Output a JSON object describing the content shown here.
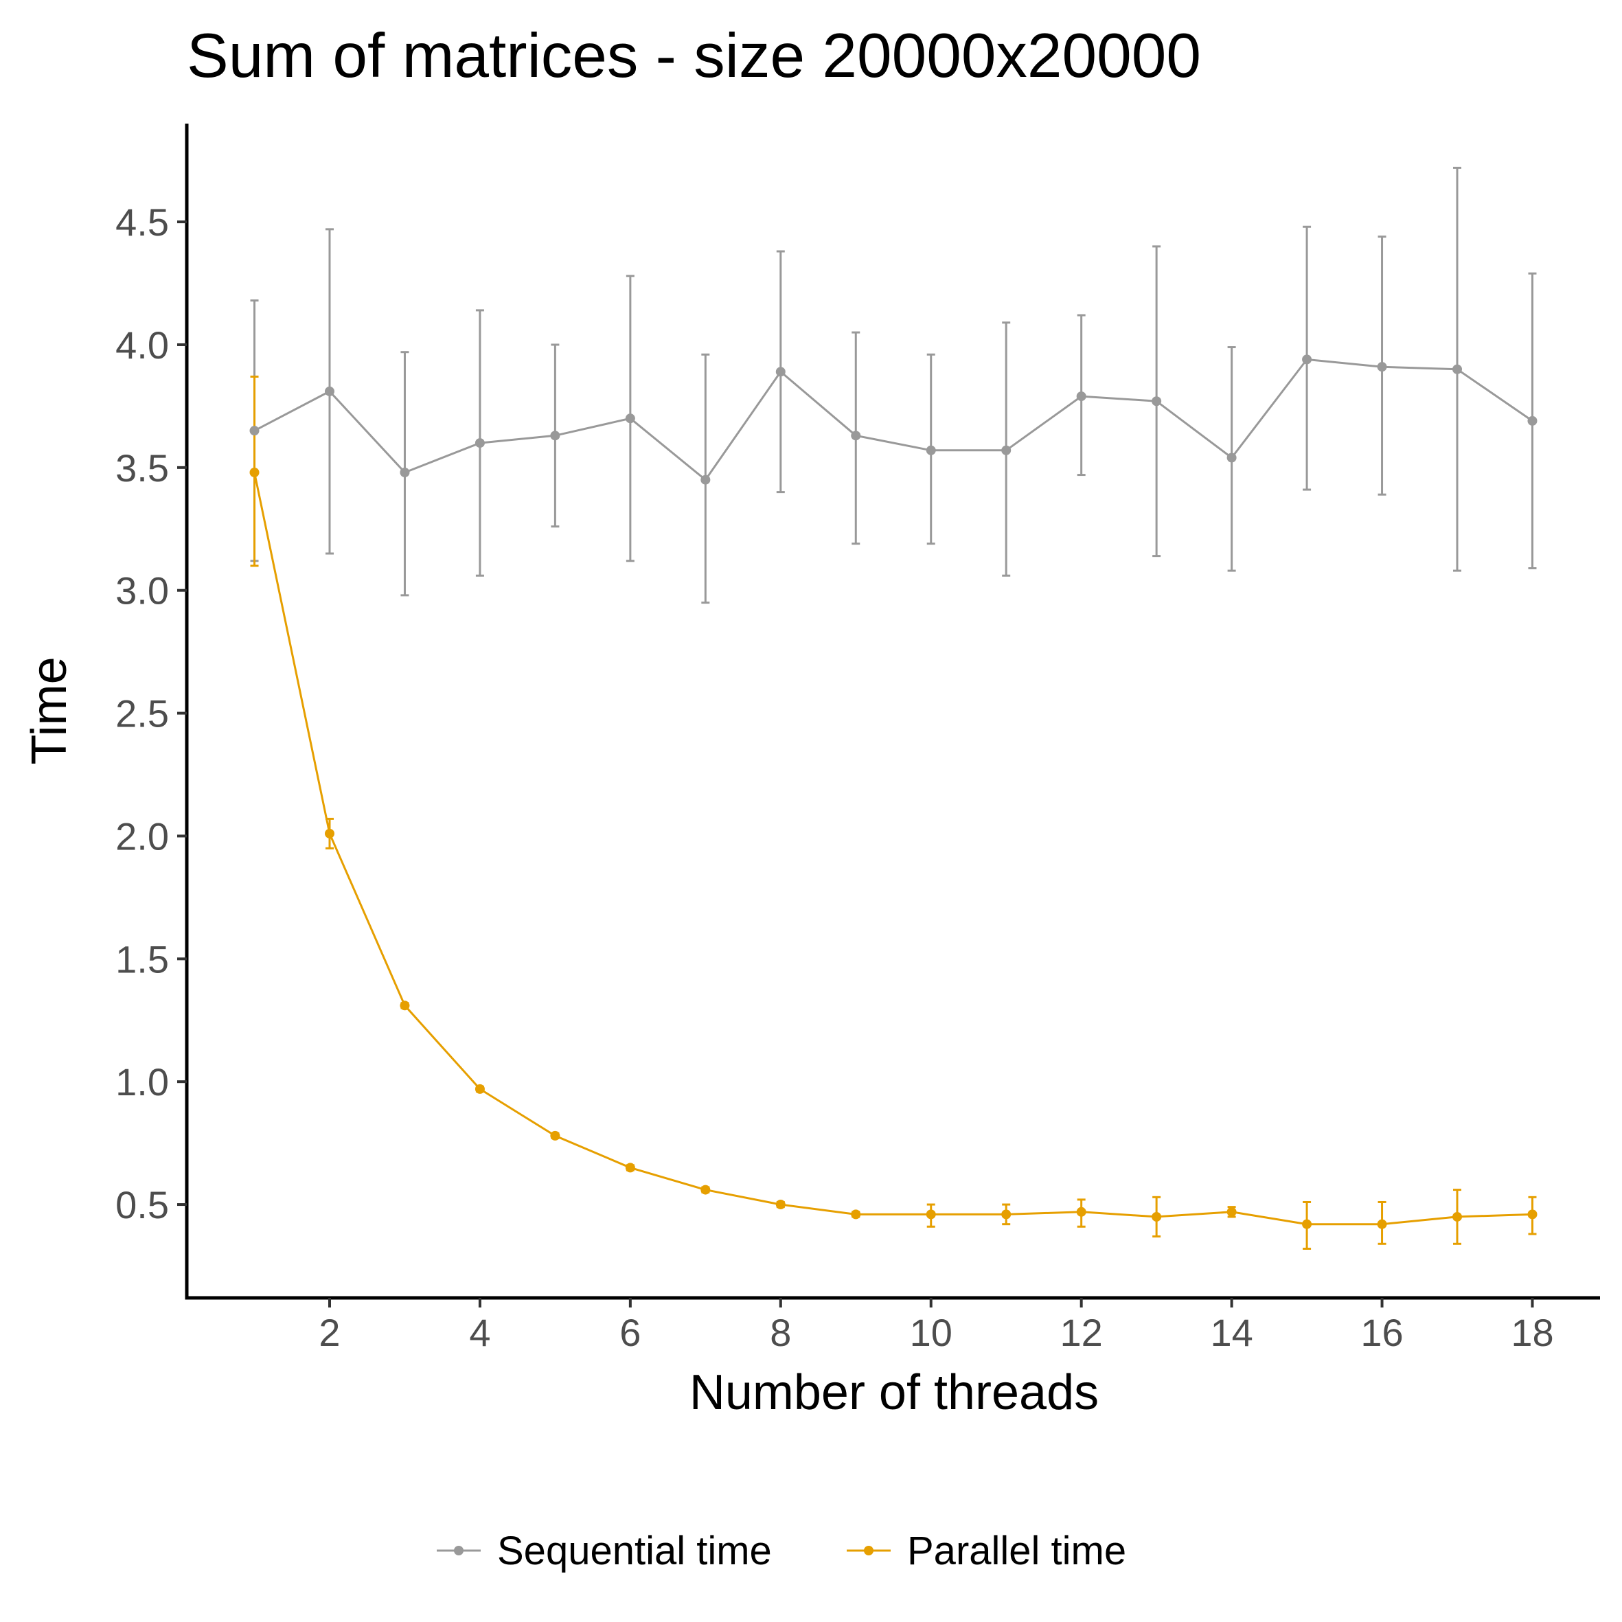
{
  "chart_data": {
    "type": "line",
    "title": "Sum of matrices - size 20000x20000",
    "xlabel": "Number of threads",
    "ylabel": "Time",
    "xlim": [
      0.1,
      18.9
    ],
    "ylim": [
      0.12,
      4.9
    ],
    "x_ticks": [
      2,
      4,
      6,
      8,
      10,
      12,
      14,
      16,
      18
    ],
    "x_tick_labels": [
      "2",
      "4",
      "6",
      "8",
      "10",
      "12",
      "14",
      "16",
      "18"
    ],
    "y_ticks": [
      0.5,
      1.0,
      1.5,
      2.0,
      2.5,
      3.0,
      3.5,
      4.0,
      4.5
    ],
    "y_tick_labels": [
      "0.5",
      "1.0",
      "1.5",
      "2.0",
      "2.5",
      "3.0",
      "3.5",
      "4.0",
      "4.5"
    ],
    "grid": false,
    "legend_position": "bottom",
    "x": [
      1,
      2,
      3,
      4,
      5,
      6,
      7,
      8,
      9,
      10,
      11,
      12,
      13,
      14,
      15,
      16,
      17,
      18
    ],
    "series": [
      {
        "name": "Sequential time",
        "color": "#999999",
        "values": [
          3.65,
          3.81,
          3.48,
          3.6,
          3.63,
          3.7,
          3.45,
          3.89,
          3.63,
          3.57,
          3.57,
          3.79,
          3.77,
          3.54,
          3.94,
          3.91,
          3.9,
          3.69
        ],
        "err_low": [
          3.12,
          3.15,
          2.98,
          3.06,
          3.26,
          3.12,
          2.95,
          3.4,
          3.19,
          3.19,
          3.06,
          3.47,
          3.14,
          3.08,
          3.41,
          3.39,
          3.08,
          3.09
        ],
        "err_high": [
          4.18,
          4.47,
          3.97,
          4.14,
          4.0,
          4.28,
          3.96,
          4.38,
          4.05,
          3.96,
          4.09,
          4.12,
          4.4,
          3.99,
          4.48,
          4.44,
          4.72,
          4.29
        ]
      },
      {
        "name": "Parallel time",
        "color": "#E69F00",
        "values": [
          3.48,
          2.01,
          1.31,
          0.97,
          0.78,
          0.65,
          0.56,
          0.5,
          0.46,
          0.46,
          0.46,
          0.47,
          0.45,
          0.47,
          0.42,
          0.42,
          0.45,
          0.46
        ],
        "err_low": [
          3.1,
          1.95,
          1.3,
          0.96,
          0.77,
          0.64,
          0.55,
          0.49,
          0.45,
          0.41,
          0.42,
          0.41,
          0.37,
          0.45,
          0.32,
          0.34,
          0.34,
          0.38
        ],
        "err_high": [
          3.87,
          2.07,
          1.32,
          0.98,
          0.79,
          0.66,
          0.57,
          0.51,
          0.47,
          0.5,
          0.5,
          0.52,
          0.53,
          0.49,
          0.51,
          0.51,
          0.56,
          0.53
        ]
      }
    ]
  }
}
